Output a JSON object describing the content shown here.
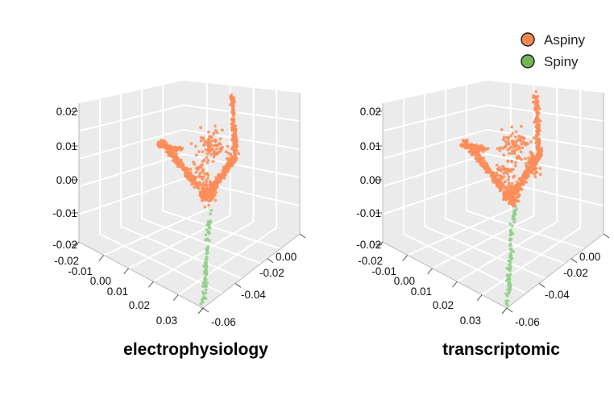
{
  "colors": {
    "aspiny": "#fc8d59",
    "spiny": "#91cf88",
    "pane": "#ebebeb",
    "grid": "#ffffff",
    "axis": "#bbbbbb"
  },
  "legend": {
    "position": "top-right",
    "items": [
      {
        "label": "Aspiny",
        "color": "#f28a4f"
      },
      {
        "label": "Spiny",
        "color": "#73b555"
      }
    ]
  },
  "chart_data": [
    {
      "type": "scatter",
      "title": "electrophysiology",
      "z_ticks": [
        "0.02",
        "0.01",
        "0.00",
        "-0.01",
        "-0.02"
      ],
      "x_ticks": [
        "-0.02",
        "-0.01",
        "0.00",
        "0.01",
        "0.02",
        "0.03"
      ],
      "y_ticks": [
        "0.00",
        "-0.02",
        "-0.04",
        "-0.06"
      ],
      "grid": true,
      "series": [
        {
          "name": "Aspiny",
          "color": "#fc8d59"
        },
        {
          "name": "Spiny",
          "color": "#91cf88"
        }
      ]
    },
    {
      "type": "scatter",
      "title": "transcriptomic",
      "z_ticks": [
        "0.02",
        "0.01",
        "0.00",
        "-0.01",
        "-0.02"
      ],
      "x_ticks": [
        "-0.02",
        "-0.01",
        "0.00",
        "0.01",
        "0.02",
        "0.03"
      ],
      "y_ticks": [
        "0.00",
        "-0.02",
        "-0.04",
        "-0.06"
      ],
      "grid": true,
      "series": [
        {
          "name": "Aspiny",
          "color": "#fc8d59"
        },
        {
          "name": "Spiny",
          "color": "#91cf88"
        }
      ]
    }
  ]
}
